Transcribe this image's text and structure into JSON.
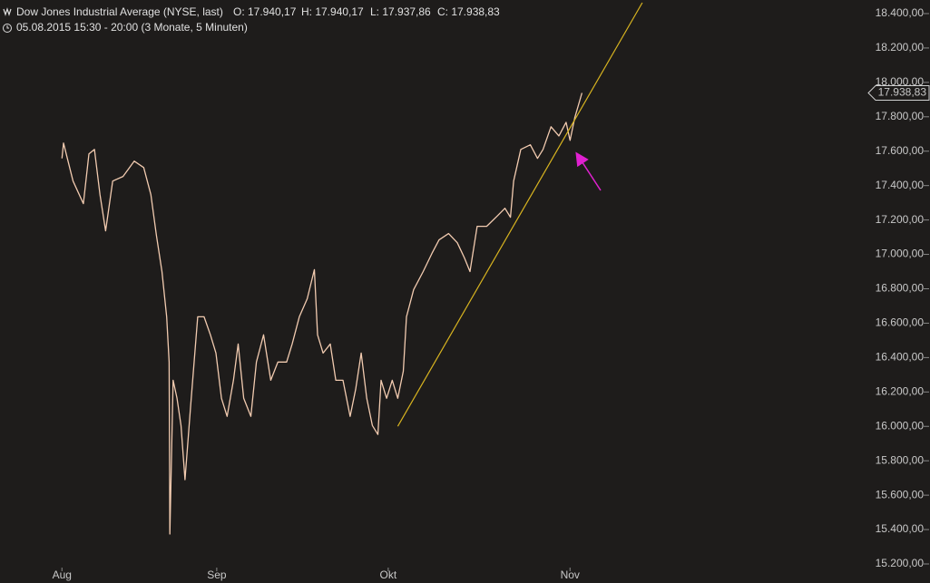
{
  "header": {
    "title": "Dow Jones Industrial Average (NYSE, last)",
    "open": "O: 17.940,17",
    "high": "H: 17.940,17",
    "low": "L: 17.937,86",
    "close": "C: 17.938,83",
    "period": "05.08.2015 15:30 - 20:00 (3 Monate, 5 Minuten)"
  },
  "chart_data": {
    "type": "line",
    "color": "#f2cbb0",
    "x": [
      0,
      0.2,
      1.4,
      2.7,
      3.4,
      4.1,
      4.8,
      5.5,
      6.4,
      7.7,
      9.1,
      10.3,
      11.2,
      11.9,
      12.6,
      13.2,
      13.5,
      13.6,
      14.0,
      14.5,
      15.0,
      15.5,
      16.2,
      17.1,
      17.9,
      18.7,
      19.4,
      20.1,
      20.8,
      21.6,
      22.2,
      22.9,
      23.8,
      24.5,
      25.4,
      26.3,
      27.2,
      28.3,
      29.0,
      29.9,
      30.9,
      31.8,
      32.2,
      32.9,
      33.8,
      34.5,
      35.4,
      36.3,
      37.0,
      37.7,
      38.4,
      39.1,
      39.8,
      40.2,
      40.9,
      41.6,
      42.3,
      43.0,
      43.4,
      44.3,
      45.5,
      46.6,
      47.5,
      48.7,
      49.8,
      50.7,
      51.4,
      52.3,
      53.5,
      54.9,
      55.8,
      56.5,
      56.9,
      57.8,
      59.0,
      59.9,
      60.6,
      61.6,
      62.6,
      63.5,
      64.0,
      64.6,
      65.5
    ],
    "values": [
      17558,
      17647,
      17426,
      17295,
      17584,
      17610,
      17347,
      17137,
      17426,
      17453,
      17542,
      17505,
      17347,
      17110,
      16900,
      16637,
      16374,
      15374,
      16268,
      16163,
      16005,
      15690,
      16111,
      16637,
      16637,
      16532,
      16426,
      16163,
      16058,
      16268,
      16479,
      16163,
      16058,
      16374,
      16532,
      16268,
      16374,
      16374,
      16479,
      16637,
      16742,
      16911,
      16532,
      16426,
      16479,
      16268,
      16268,
      16058,
      16216,
      16426,
      16163,
      16005,
      15953,
      16268,
      16163,
      16268,
      16163,
      16321,
      16637,
      16795,
      16900,
      17005,
      17084,
      17121,
      17068,
      16979,
      16900,
      17163,
      17163,
      17226,
      17268,
      17216,
      17426,
      17610,
      17637,
      17558,
      17610,
      17742,
      17689,
      17768,
      17663,
      17795,
      17938.83
    ],
    "trendline": {
      "x": [
        42.3,
        73.1
      ],
      "values": [
        16000,
        18463
      ],
      "color": "#d8b420"
    },
    "last_label": {
      "value": 17938.83,
      "label": "17.938,83"
    },
    "xlim": [
      -7.8,
      101.4
    ],
    "xticks": [
      {
        "value": 0,
        "label": "Aug"
      },
      {
        "value": 19.5,
        "label": "Sep"
      },
      {
        "value": 41.1,
        "label": "Okt"
      },
      {
        "value": 64.0,
        "label": "Nov"
      }
    ],
    "ylim": [
      15200,
      18479
    ],
    "yticks": [
      {
        "value": 15200,
        "label": "15.200,00"
      },
      {
        "value": 15400,
        "label": "15.400,00"
      },
      {
        "value": 15600,
        "label": "15.600,00"
      },
      {
        "value": 15800,
        "label": "15.800,00"
      },
      {
        "value": 16000,
        "label": "16.000,00"
      },
      {
        "value": 16200,
        "label": "16.200,00"
      },
      {
        "value": 16400,
        "label": "16.400,00"
      },
      {
        "value": 16600,
        "label": "16.600,00"
      },
      {
        "value": 16800,
        "label": "16.800,00"
      },
      {
        "value": 17000,
        "label": "17.000,00"
      },
      {
        "value": 17200,
        "label": "17.200,00"
      },
      {
        "value": 17400,
        "label": "17.400,00"
      },
      {
        "value": 17600,
        "label": "17.600,00"
      },
      {
        "value": 17800,
        "label": "17.800,00"
      },
      {
        "value": 18000,
        "label": "18.000,00"
      },
      {
        "value": 18200,
        "label": "18.200,00"
      },
      {
        "value": 18400,
        "label": "18.400,00"
      }
    ]
  }
}
